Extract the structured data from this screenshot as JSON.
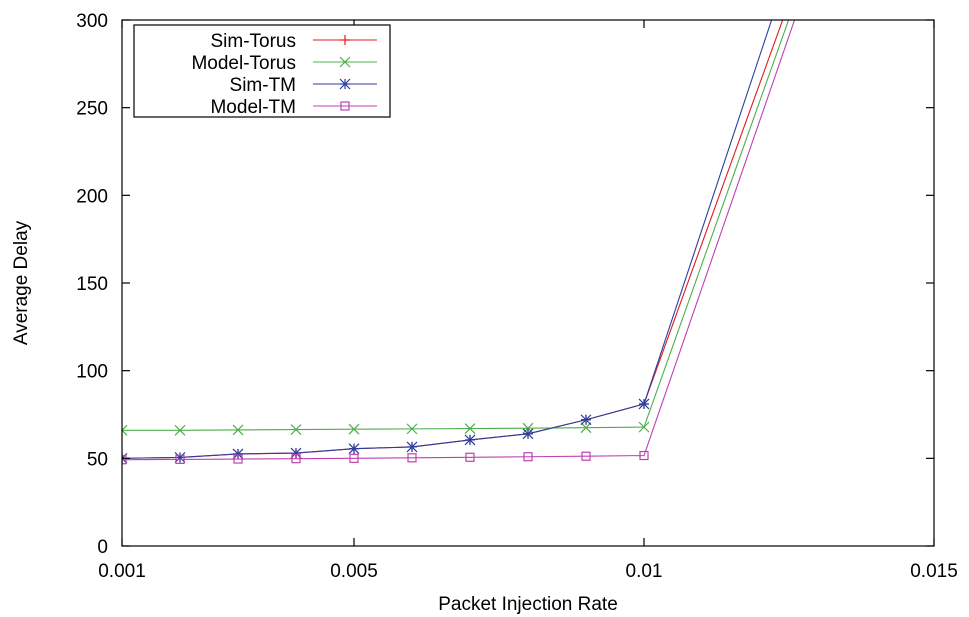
{
  "chart_data": {
    "type": "line",
    "xlabel": "Packet Injection Rate",
    "ylabel": "Average Delay",
    "xlim": [
      0.001,
      0.015
    ],
    "ylim": [
      0,
      300
    ],
    "x_ticks": [
      {
        "value": 0.001,
        "label": "0.001"
      },
      {
        "value": 0.005,
        "label": "0.005"
      },
      {
        "value": 0.01,
        "label": "0.01"
      },
      {
        "value": 0.015,
        "label": "0.015"
      }
    ],
    "y_ticks": [
      {
        "value": 0,
        "label": "0"
      },
      {
        "value": 50,
        "label": "50"
      },
      {
        "value": 100,
        "label": "100"
      },
      {
        "value": 150,
        "label": "150"
      },
      {
        "value": 200,
        "label": "200"
      },
      {
        "value": 250,
        "label": "250"
      },
      {
        "value": 300,
        "label": "300"
      }
    ],
    "grid": false,
    "legend_position": "top-left",
    "series": [
      {
        "name": "Sim-Torus",
        "color": "#e41a1c",
        "marker": "plus",
        "x": [
          0.001,
          0.002,
          0.003,
          0.004,
          0.005,
          0.006,
          0.007,
          0.008,
          0.009,
          0.01,
          0.0125
        ],
        "y": [
          50,
          50.5,
          52.5,
          53,
          55.5,
          56.5,
          60.5,
          64,
          72,
          81,
          310
        ]
      },
      {
        "name": "Model-Torus",
        "color": "#4daf4a",
        "marker": "x",
        "x": [
          0.001,
          0.002,
          0.003,
          0.004,
          0.005,
          0.006,
          0.007,
          0.008,
          0.009,
          0.01,
          0.0126
        ],
        "y": [
          66,
          66,
          66.2,
          66.4,
          66.6,
          66.8,
          67,
          67.2,
          67.5,
          67.8,
          310
        ]
      },
      {
        "name": "Sim-TM",
        "color": "#2c3e9e",
        "marker": "star",
        "x": [
          0.001,
          0.002,
          0.003,
          0.004,
          0.005,
          0.006,
          0.007,
          0.008,
          0.009,
          0.01,
          0.0123
        ],
        "y": [
          50,
          50.5,
          52.5,
          53,
          55.5,
          56.5,
          60.5,
          64,
          72,
          81,
          310
        ]
      },
      {
        "name": "Model-TM",
        "color": "#c040b0",
        "marker": "square",
        "x": [
          0.001,
          0.002,
          0.003,
          0.004,
          0.005,
          0.006,
          0.007,
          0.008,
          0.009,
          0.01,
          0.0127
        ],
        "y": [
          49.2,
          49.4,
          49.6,
          49.8,
          50.0,
          50.3,
          50.6,
          50.9,
          51.2,
          51.6,
          310
        ]
      }
    ]
  }
}
